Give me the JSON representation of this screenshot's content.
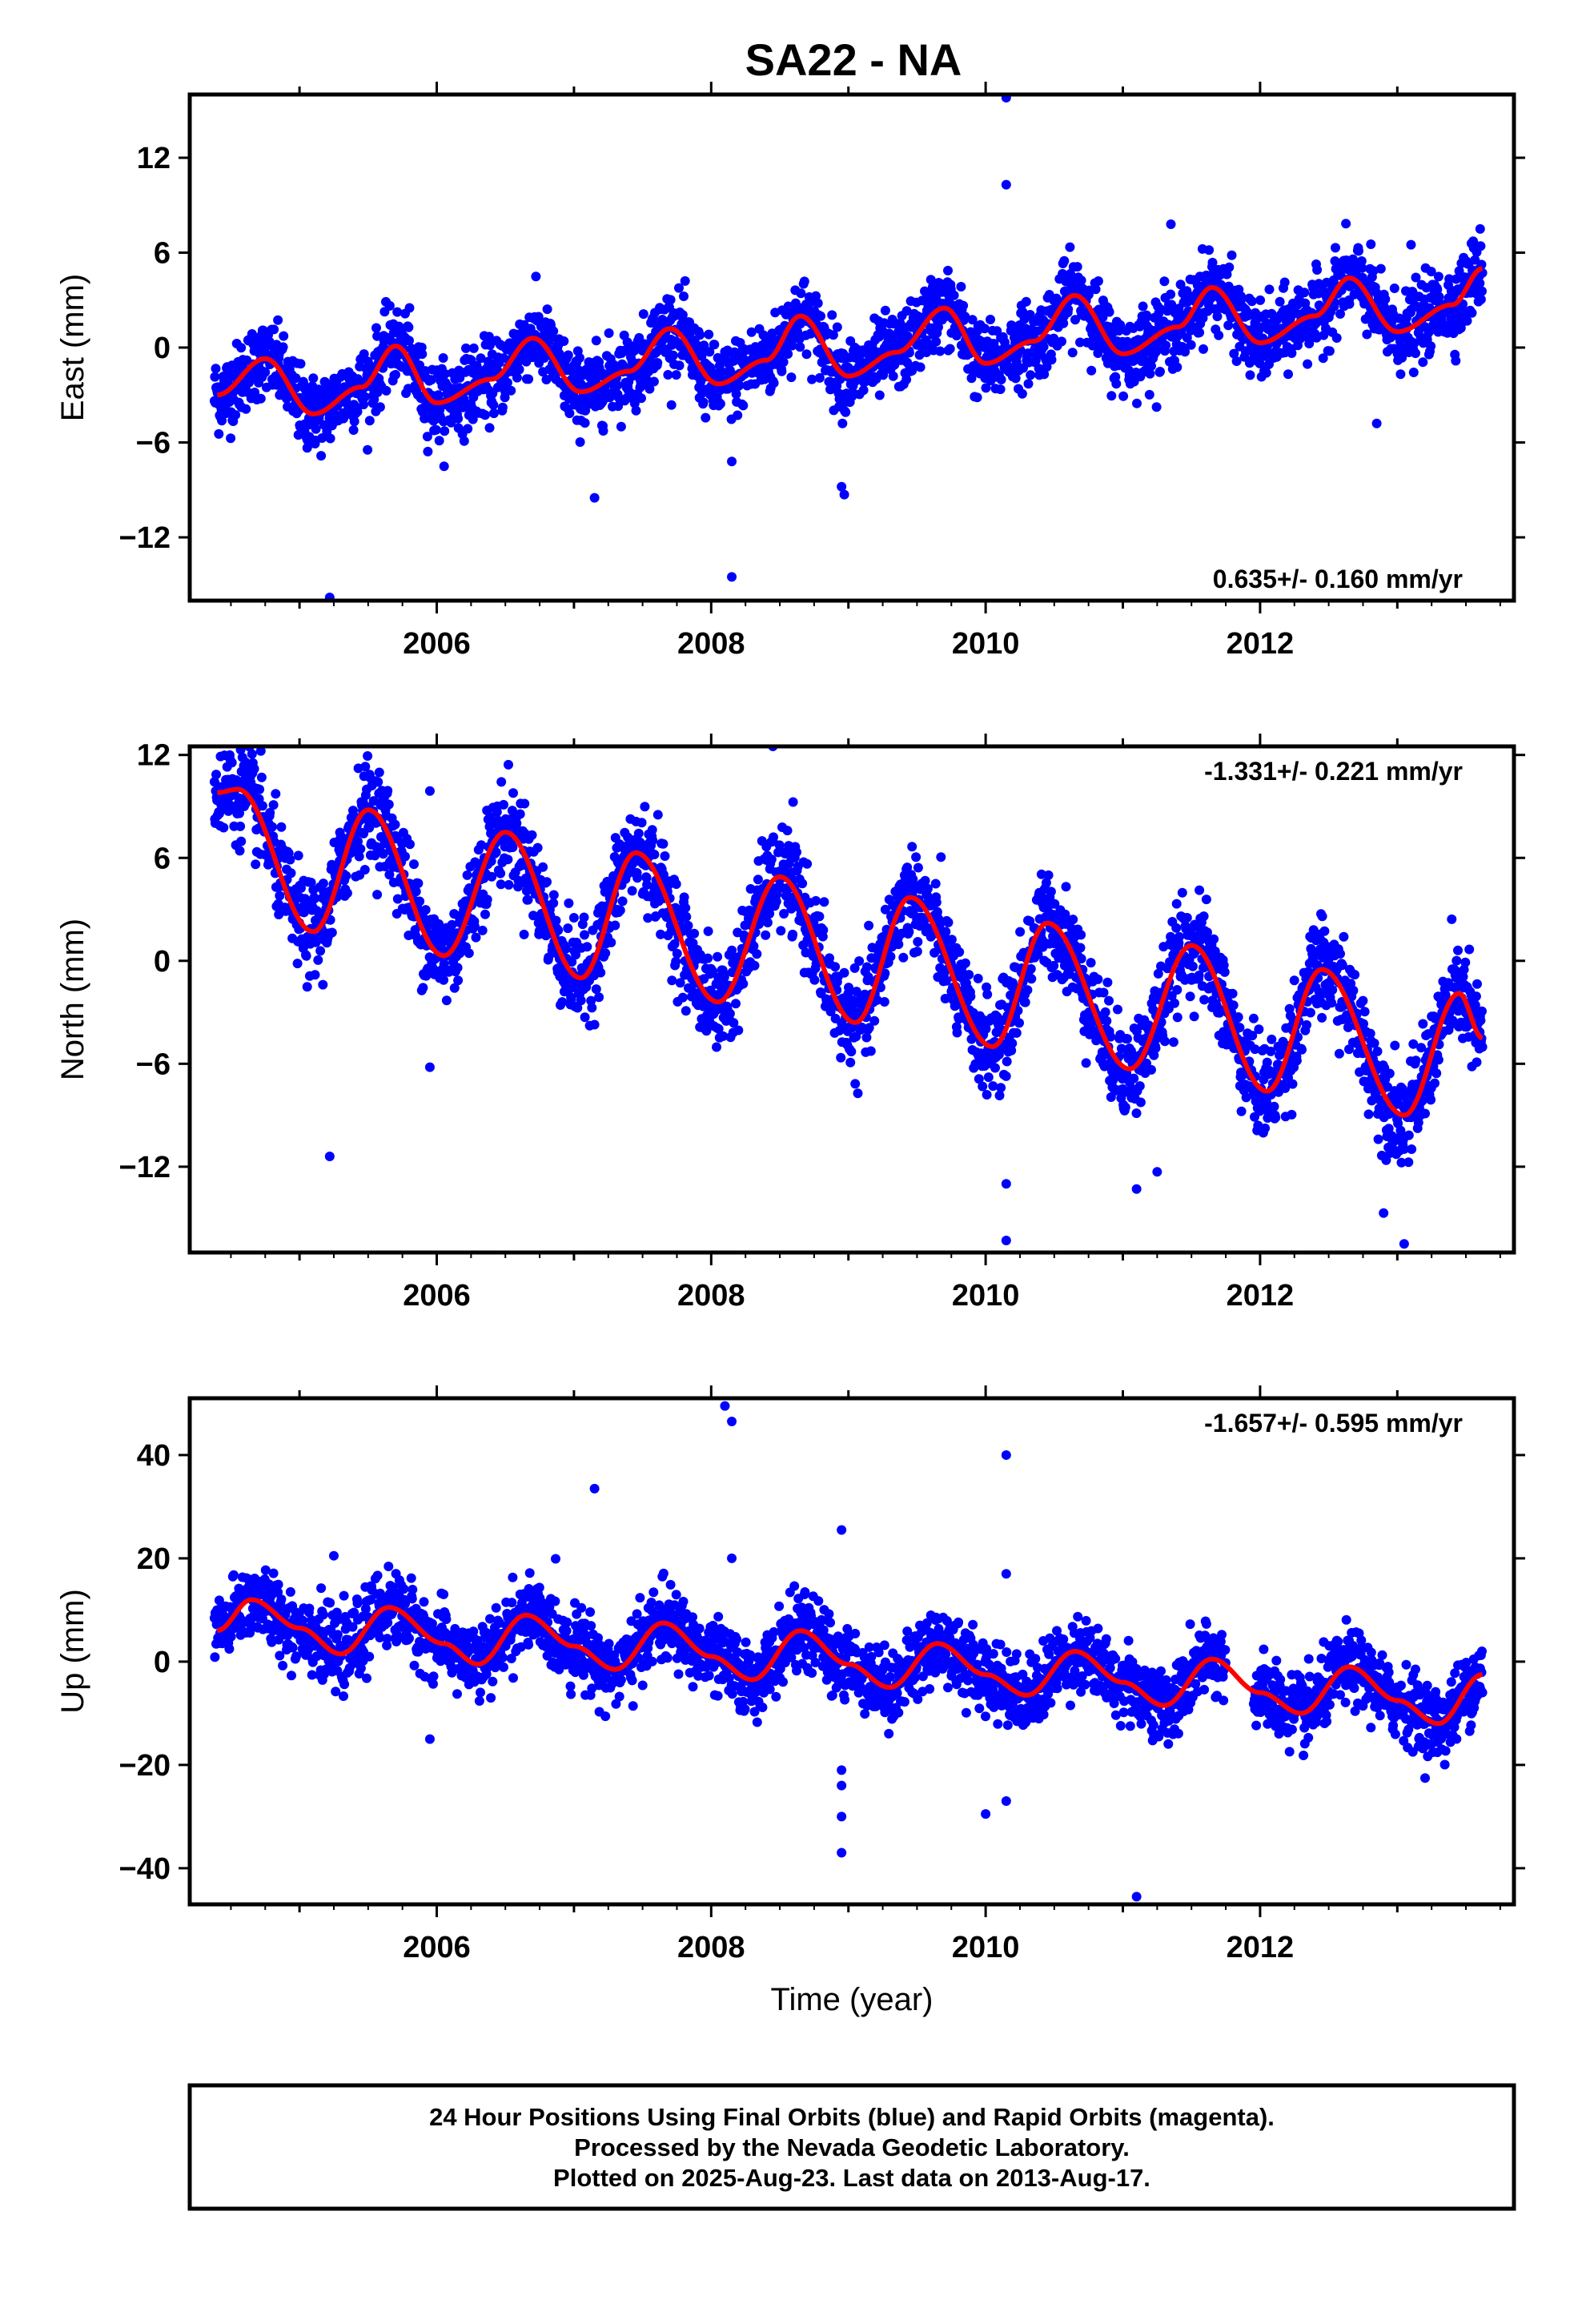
{
  "title": "SA22 - NA",
  "colors": {
    "final_points": "#0000ff",
    "model_curve": "#ff0000",
    "frame": "#000000"
  },
  "chart_data": [
    {
      "type": "scatter",
      "ylabel": "East (mm)",
      "xlabel": "",
      "xlim": [
        2004.2,
        2013.85
      ],
      "ylim": [
        -16,
        16
      ],
      "yticks": [
        -12,
        -6,
        0,
        6,
        12
      ],
      "xticks": [
        2006,
        2008,
        2010,
        2012
      ],
      "rate_label": "0.635+/- 0.160 mm/yr",
      "rate_position": "bottom-right",
      "x_range": [
        2004.38,
        2013.62
      ],
      "trend": {
        "rate": 0.635,
        "offset_at_2009": 0.0
      },
      "seasonal": {
        "amplitude": 1.6,
        "peak_year_fraction": 0.65
      },
      "scatter_sd": 1.2,
      "model_curve": [
        [
          2004.4,
          -3.0
        ],
        [
          2004.75,
          -0.7
        ],
        [
          2005.1,
          -4.2
        ],
        [
          2005.45,
          -2.5
        ],
        [
          2005.7,
          0.1
        ],
        [
          2006.0,
          -3.5
        ],
        [
          2006.4,
          -2.0
        ],
        [
          2006.7,
          0.6
        ],
        [
          2007.05,
          -2.8
        ],
        [
          2007.4,
          -1.5
        ],
        [
          2007.7,
          1.2
        ],
        [
          2008.05,
          -2.3
        ],
        [
          2008.4,
          -0.8
        ],
        [
          2008.65,
          2.0
        ],
        [
          2009.0,
          -1.8
        ],
        [
          2009.35,
          -0.3
        ],
        [
          2009.7,
          2.5
        ],
        [
          2010.0,
          -1.0
        ],
        [
          2010.35,
          0.4
        ],
        [
          2010.65,
          3.3
        ],
        [
          2011.0,
          -0.4
        ],
        [
          2011.4,
          1.3
        ],
        [
          2011.65,
          3.8
        ],
        [
          2012.0,
          0.3
        ],
        [
          2012.4,
          2.0
        ],
        [
          2012.65,
          4.4
        ],
        [
          2013.0,
          1.0
        ],
        [
          2013.4,
          2.7
        ],
        [
          2013.62,
          5.0
        ]
      ],
      "outliers": [
        [
          2005.22,
          -15.8
        ],
        [
          2007.15,
          -9.5
        ],
        [
          2008.15,
          -7.2
        ],
        [
          2008.15,
          -14.5
        ],
        [
          2008.95,
          -8.8
        ],
        [
          2008.97,
          -9.3
        ],
        [
          2010.15,
          15.8
        ],
        [
          2010.15,
          10.3
        ],
        [
          2011.35,
          7.8
        ],
        [
          2012.85,
          -4.8
        ],
        [
          2013.1,
          6.5
        ]
      ]
    },
    {
      "type": "scatter",
      "ylabel": "North (mm)",
      "xlabel": "",
      "xlim": [
        2004.2,
        2013.85
      ],
      "ylim": [
        -17,
        12.5
      ],
      "yticks": [
        -12,
        -6,
        0,
        6,
        12
      ],
      "xticks": [
        2006,
        2008,
        2010,
        2012
      ],
      "rate_label": "-1.331+/- 0.221 mm/yr",
      "rate_position": "top-right",
      "x_range": [
        2004.38,
        2013.62
      ],
      "trend": {
        "rate": -1.331,
        "offset_at_2009": 0.0
      },
      "seasonal": {
        "amplitude": 5.0,
        "peak_year_fraction": 0.45
      },
      "scatter_sd": 1.4,
      "model_curve": [
        [
          2004.4,
          9.8
        ],
        [
          2004.55,
          10.0
        ],
        [
          2005.1,
          1.7
        ],
        [
          2005.5,
          8.8
        ],
        [
          2006.05,
          0.3
        ],
        [
          2006.5,
          7.5
        ],
        [
          2007.05,
          -1.0
        ],
        [
          2007.45,
          6.3
        ],
        [
          2008.05,
          -2.4
        ],
        [
          2008.5,
          4.9
        ],
        [
          2009.05,
          -3.6
        ],
        [
          2009.45,
          3.7
        ],
        [
          2010.05,
          -5.0
        ],
        [
          2010.45,
          2.2
        ],
        [
          2011.05,
          -6.3
        ],
        [
          2011.5,
          0.9
        ],
        [
          2012.05,
          -7.6
        ],
        [
          2012.45,
          -0.5
        ],
        [
          2013.05,
          -9.0
        ],
        [
          2013.45,
          -1.9
        ],
        [
          2013.62,
          -4.5
        ]
      ],
      "outliers": [
        [
          2005.22,
          -11.4
        ],
        [
          2005.95,
          9.9
        ],
        [
          2005.95,
          -6.2
        ],
        [
          2008.45,
          12.5
        ],
        [
          2010.15,
          -13.0
        ],
        [
          2010.15,
          -16.3
        ],
        [
          2011.1,
          -13.3
        ],
        [
          2011.25,
          -12.3
        ],
        [
          2012.9,
          -14.7
        ],
        [
          2013.05,
          -16.5
        ]
      ]
    },
    {
      "type": "scatter",
      "ylabel": "Up (mm)",
      "xlabel": "Time (year)",
      "xlim": [
        2004.2,
        2013.85
      ],
      "ylim": [
        -47,
        51
      ],
      "yticks": [
        -40,
        -20,
        0,
        20,
        40
      ],
      "xticks": [
        2006,
        2008,
        2010,
        2012
      ],
      "rate_label": "-1.657+/- 0.595 mm/yr",
      "rate_position": "top-right",
      "x_range": [
        2004.38,
        2013.62
      ],
      "trend": {
        "rate": -1.657,
        "offset_at_2009": 0.0
      },
      "seasonal": {
        "amplitude": 4.5,
        "peak_year_fraction": 0.62
      },
      "scatter_sd": 3.5,
      "model_curve": [
        [
          2004.4,
          6.0
        ],
        [
          2004.65,
          12.0
        ],
        [
          2005.0,
          6.5
        ],
        [
          2005.3,
          1.5
        ],
        [
          2005.65,
          10.5
        ],
        [
          2006.05,
          3.5
        ],
        [
          2006.3,
          -0.5
        ],
        [
          2006.65,
          9.0
        ],
        [
          2007.0,
          3.0
        ],
        [
          2007.3,
          -1.5
        ],
        [
          2007.65,
          7.5
        ],
        [
          2008.0,
          1.0
        ],
        [
          2008.3,
          -3.5
        ],
        [
          2008.65,
          6.0
        ],
        [
          2009.0,
          -0.5
        ],
        [
          2009.3,
          -5.0
        ],
        [
          2009.65,
          3.5
        ],
        [
          2010.0,
          -2.5
        ],
        [
          2010.3,
          -6.5
        ],
        [
          2010.65,
          2.0
        ],
        [
          2011.0,
          -4.0
        ],
        [
          2011.3,
          -8.5
        ],
        [
          2011.65,
          0.5
        ],
        [
          2012.0,
          -6.0
        ],
        [
          2012.3,
          -10.0
        ],
        [
          2012.65,
          -1.0
        ],
        [
          2013.0,
          -7.5
        ],
        [
          2013.3,
          -12.0
        ],
        [
          2013.62,
          -2.5
        ]
      ],
      "outliers": [
        [
          2007.15,
          33.5
        ],
        [
          2008.1,
          49.5
        ],
        [
          2008.15,
          46.5
        ],
        [
          2008.15,
          20.0
        ],
        [
          2008.95,
          25.5
        ],
        [
          2008.95,
          -21.0
        ],
        [
          2008.95,
          -24.0
        ],
        [
          2008.95,
          -30.0
        ],
        [
          2008.95,
          -37.0
        ],
        [
          2010.0,
          -29.5
        ],
        [
          2010.15,
          40.0
        ],
        [
          2010.15,
          17.0
        ],
        [
          2010.15,
          -27.0
        ],
        [
          2011.1,
          -45.5
        ],
        [
          2005.95,
          -15.0
        ],
        [
          2005.25,
          20.5
        ]
      ]
    }
  ],
  "footer": {
    "line1": "24 Hour Positions Using Final Orbits (blue) and Rapid Orbits (magenta).",
    "line2": "Processed by the Nevada Geodetic Laboratory.",
    "line3": "Plotted on 2025-Aug-23. Last data on 2013-Aug-17."
  }
}
